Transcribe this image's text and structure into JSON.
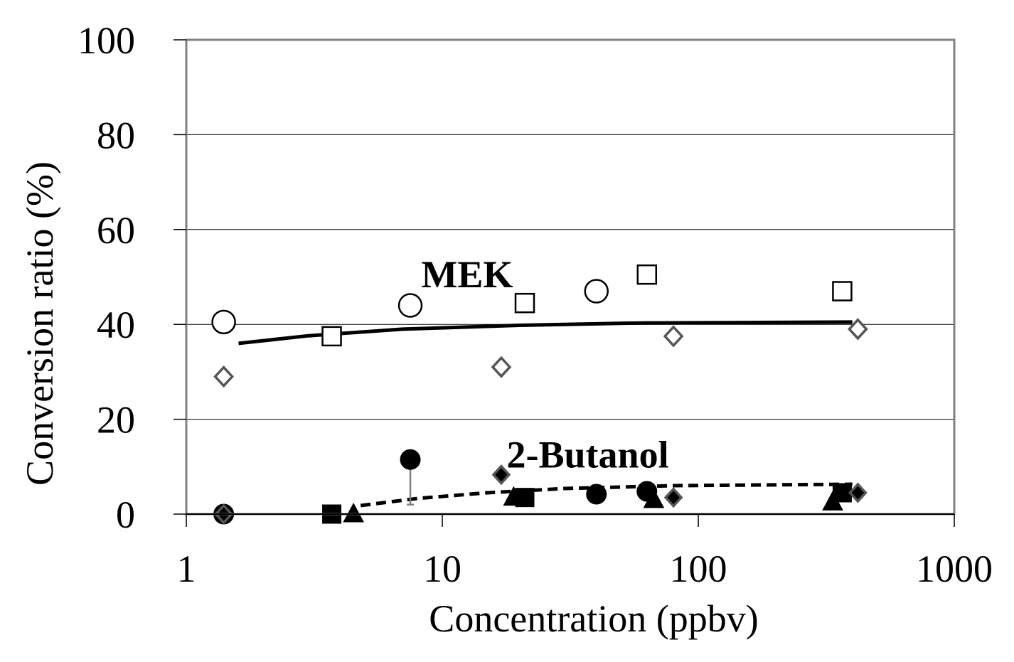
{
  "chart_data": {
    "type": "scatter",
    "xscale": "log",
    "xlabel": "Concentration (ppbv)",
    "ylabel": "Conversion ratio (%)",
    "xlim": [
      1,
      1000
    ],
    "ylim": [
      0,
      100
    ],
    "xticks": [
      {
        "value": 1,
        "label": "1"
      },
      {
        "value": 10,
        "label": "10"
      },
      {
        "value": 100,
        "label": "100"
      },
      {
        "value": 1000,
        "label": "1000"
      }
    ],
    "yticks": [
      {
        "value": 0,
        "label": "0"
      },
      {
        "value": 20,
        "label": "20"
      },
      {
        "value": 40,
        "label": "40"
      },
      {
        "value": 60,
        "label": "60"
      },
      {
        "value": 80,
        "label": "80"
      },
      {
        "value": 100,
        "label": "100"
      }
    ],
    "grid": {
      "horizontal": true,
      "vertical": false
    },
    "annotations": [
      {
        "text": "MEK",
        "x": 12.5,
        "y": 50.5
      },
      {
        "text": "2-Butanol",
        "x": 37,
        "y": 12.5
      }
    ],
    "series": [
      {
        "name": "MEK (open circle)",
        "marker": "circle-open",
        "color": "#000000",
        "points": [
          {
            "x": 1.4,
            "y": 40.5
          },
          {
            "x": 7.5,
            "y": 44
          },
          {
            "x": 40,
            "y": 47
          }
        ]
      },
      {
        "name": "MEK (open square)",
        "marker": "square-open",
        "color": "#000000",
        "points": [
          {
            "x": 3.7,
            "y": 37.5
          },
          {
            "x": 21,
            "y": 44.5
          },
          {
            "x": 63,
            "y": 50.5
          },
          {
            "x": 365,
            "y": 47
          }
        ]
      },
      {
        "name": "MEK (open diamond)",
        "marker": "diamond-open",
        "color": "#555555",
        "points": [
          {
            "x": 1.4,
            "y": 29
          },
          {
            "x": 17,
            "y": 31
          },
          {
            "x": 80,
            "y": 37.5
          },
          {
            "x": 420,
            "y": 39
          }
        ]
      },
      {
        "name": "2-Butanol (filled circle)",
        "marker": "circle-filled",
        "color": "#000000",
        "points": [
          {
            "x": 1.4,
            "y": 0
          },
          {
            "x": 7.5,
            "y": 11.5,
            "errorLow": 2
          },
          {
            "x": 40,
            "y": 4.2
          },
          {
            "x": 63,
            "y": 4.8
          }
        ]
      },
      {
        "name": "2-Butanol (filled square)",
        "marker": "square-filled",
        "color": "#000000",
        "points": [
          {
            "x": 3.7,
            "y": 0
          },
          {
            "x": 21,
            "y": 3.5
          },
          {
            "x": 365,
            "y": 4.5
          }
        ]
      },
      {
        "name": "2-Butanol (filled triangle)",
        "marker": "triangle-filled",
        "color": "#000000",
        "points": [
          {
            "x": 4.5,
            "y": 0
          },
          {
            "x": 19,
            "y": 3.5
          },
          {
            "x": 67,
            "y": 3
          },
          {
            "x": 335,
            "y": 2.5
          }
        ]
      },
      {
        "name": "2-Butanol (filled diamond)",
        "marker": "diamond-filled",
        "color": "#000000",
        "points": [
          {
            "x": 1.4,
            "y": 0
          },
          {
            "x": 17,
            "y": 8.3
          },
          {
            "x": 80,
            "y": 3.5
          },
          {
            "x": 420,
            "y": 4.5
          }
        ]
      }
    ],
    "trendlines": [
      {
        "name": "MEK trend",
        "style": "solid",
        "points": [
          {
            "x": 1.6,
            "y": 36
          },
          {
            "x": 3,
            "y": 37.6
          },
          {
            "x": 7,
            "y": 39
          },
          {
            "x": 20,
            "y": 39.8
          },
          {
            "x": 60,
            "y": 40.3
          },
          {
            "x": 400,
            "y": 40.5
          }
        ]
      },
      {
        "name": "2-Butanol trend",
        "style": "dashed",
        "points": [
          {
            "x": 4.8,
            "y": 1.8
          },
          {
            "x": 8,
            "y": 3.3
          },
          {
            "x": 15,
            "y": 4.5
          },
          {
            "x": 30,
            "y": 5.4
          },
          {
            "x": 80,
            "y": 6
          },
          {
            "x": 400,
            "y": 6.3
          }
        ]
      }
    ]
  }
}
